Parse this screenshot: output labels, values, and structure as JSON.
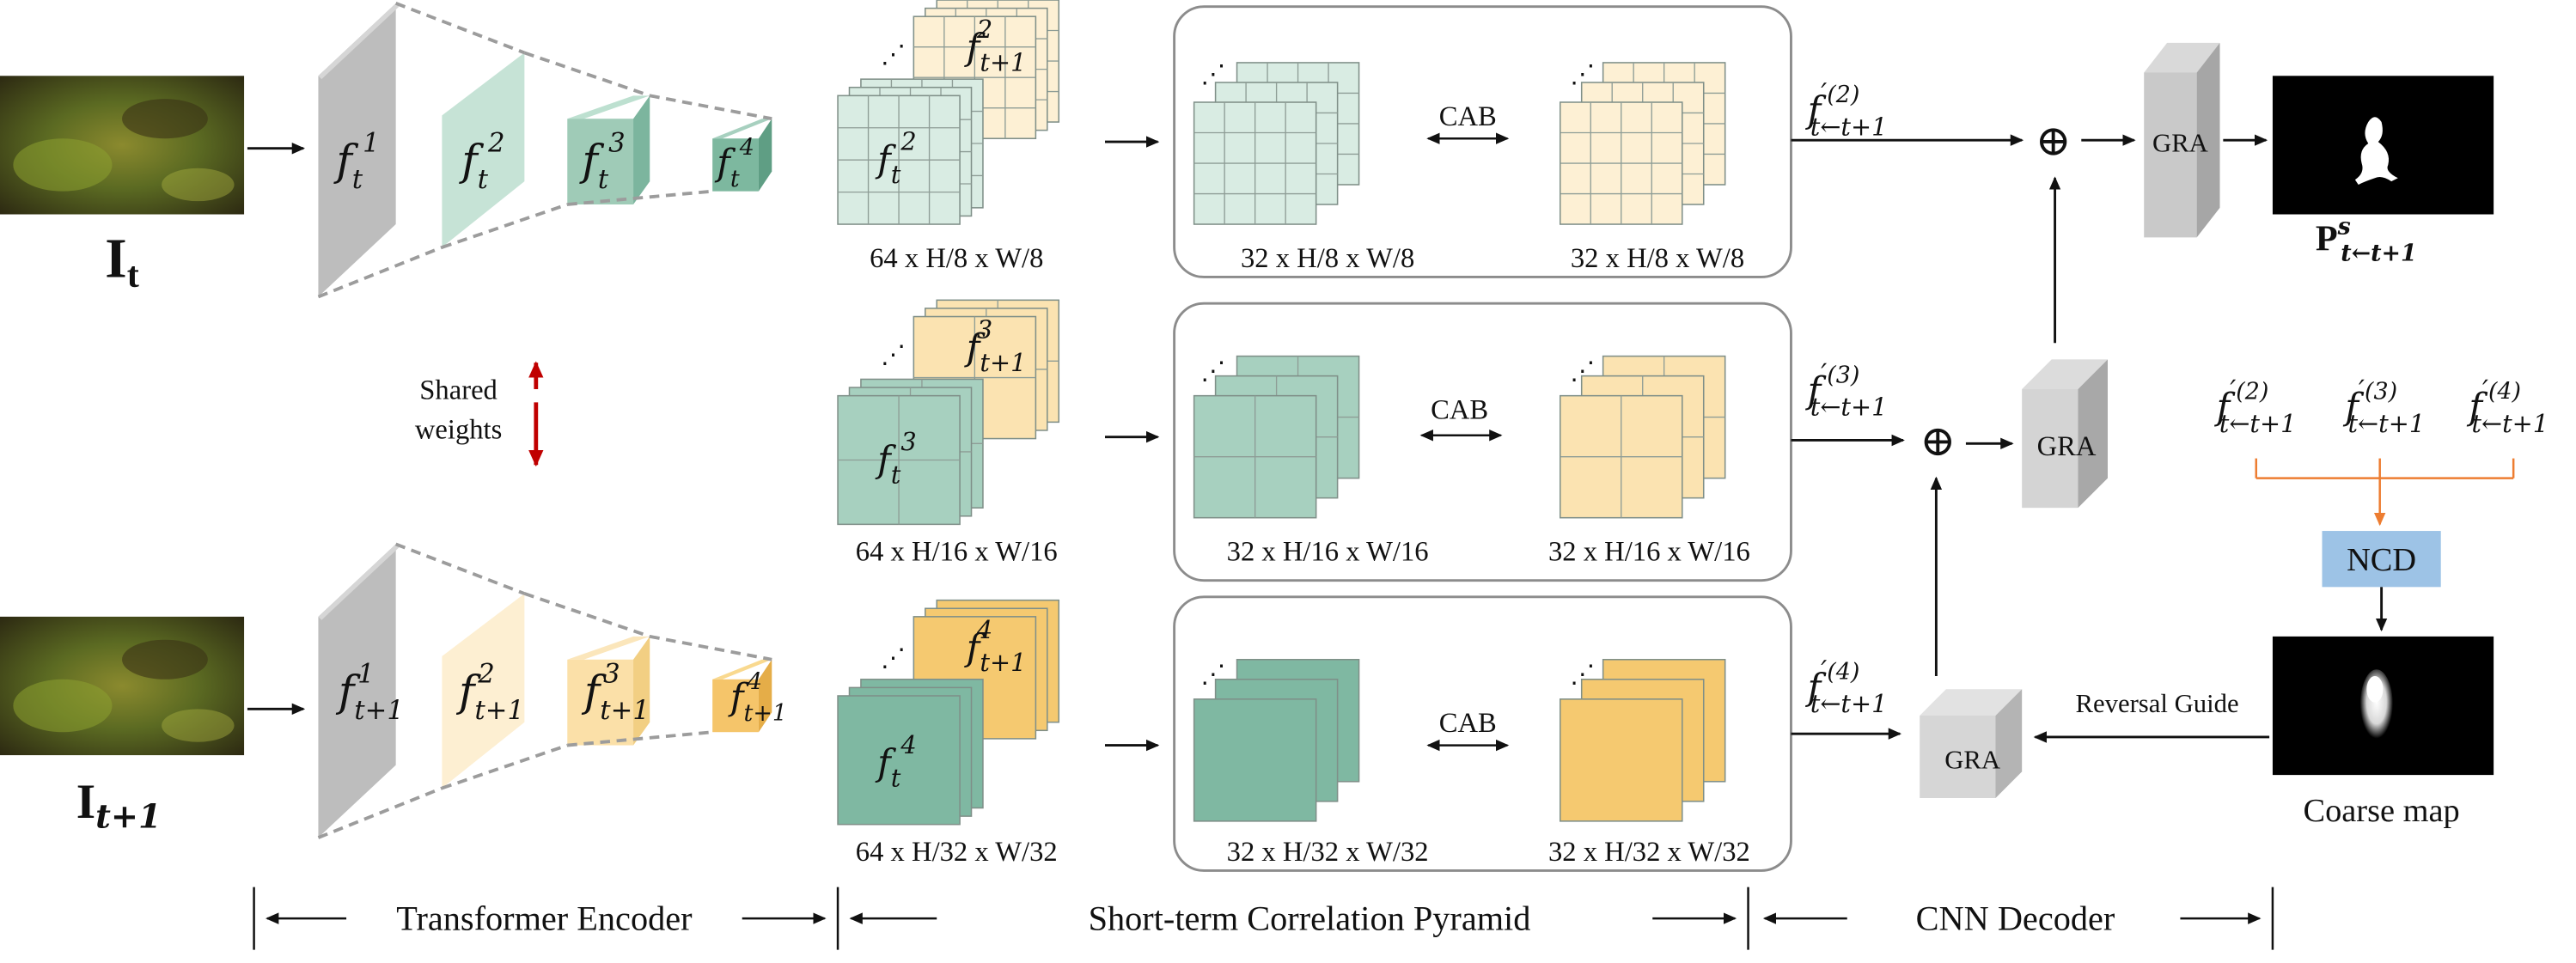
{
  "inputs": {
    "frame_t_label": "I",
    "frame_t_sub": "t",
    "frame_t1_label": "I",
    "frame_t1_sub": "t+1"
  },
  "encoder": {
    "t_features": [
      {
        "base": "f",
        "sub": "t",
        "sup": "1"
      },
      {
        "base": "f",
        "sub": "t",
        "sup": "2"
      },
      {
        "base": "f",
        "sub": "t",
        "sup": "3"
      },
      {
        "base": "f",
        "sub": "t",
        "sup": "4"
      }
    ],
    "t1_features": [
      {
        "base": "f",
        "sub": "t+1",
        "sup": "1"
      },
      {
        "base": "f",
        "sub": "t+1",
        "sup": "2"
      },
      {
        "base": "f",
        "sub": "t+1",
        "sup": "3"
      },
      {
        "base": "f",
        "sub": "t+1",
        "sup": "4"
      }
    ],
    "shared_label_line1": "Shared",
    "shared_label_line2": "weights"
  },
  "pyramid": {
    "levels": [
      {
        "stack_front": {
          "base": "f",
          "sub": "t",
          "sup": "2"
        },
        "stack_back": {
          "base": "f",
          "sub": "t+1",
          "sup": "2"
        },
        "stack_dims": "64 x H/8 x W/8",
        "left_dims": "32 x H/8 x W/8",
        "right_dims": "32 x H/8 x W/8",
        "cab": "CAB"
      },
      {
        "stack_front": {
          "base": "f",
          "sub": "t",
          "sup": "3"
        },
        "stack_back": {
          "base": "f",
          "sub": "t+1",
          "sup": "3"
        },
        "stack_dims": "64 x H/16 x W/16",
        "left_dims": "32 x H/16 x W/16",
        "right_dims": "32 x H/16 x W/16",
        "cab": "CAB"
      },
      {
        "stack_front": {
          "base": "f",
          "sub": "t",
          "sup": "4"
        },
        "stack_back": {
          "base": "f",
          "sub": "t+1",
          "sup": "4"
        },
        "stack_dims": "64 x H/32 x W/32",
        "left_dims": "32 x H/32 x W/32",
        "right_dims": "32 x H/32 x W/32",
        "cab": "CAB"
      }
    ],
    "ellipsis": "⋰"
  },
  "decoder": {
    "correlation_features": [
      {
        "base": "f",
        "prime": "′",
        "sup": "(2)",
        "sub": "t←t+1"
      },
      {
        "base": "f",
        "prime": "′",
        "sup": "(3)",
        "sub": "t←t+1"
      },
      {
        "base": "f",
        "prime": "′",
        "sup": "(4)",
        "sub": "t←t+1"
      }
    ],
    "gra_label": "GRA",
    "plus_symbol": "⊕",
    "ncd_label": "NCD",
    "reversal_label": "Reversal Guide",
    "coarse_label": "Coarse map",
    "output_label": "P",
    "output_sup": "s",
    "output_sub": "t←t+1"
  },
  "sections": {
    "encoder": "Transformer Encoder",
    "pyramid": "Short-term Correlation Pyramid",
    "decoder": "CNN Decoder"
  },
  "colors": {
    "green_light": "#d9ece3",
    "green_mid": "#a7d0bf",
    "green_dark": "#7fb8a2",
    "yellow_light": "#fdf0d4",
    "yellow_mid": "#fbe3b1",
    "yellow_dark": "#f5c970",
    "gray": "#bfbfbf",
    "ncd_blue": "#9dc3e6",
    "arrow_red": "#c00000",
    "orange_line": "#ed7d31"
  }
}
